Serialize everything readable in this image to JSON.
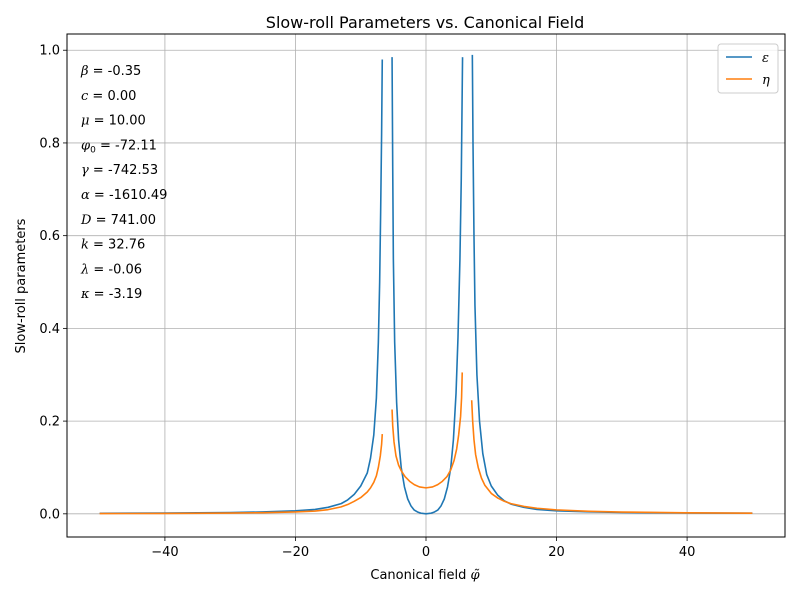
{
  "chart_data": {
    "type": "line",
    "title": "Slow-roll Parameters vs. Canonical Field",
    "xlabel": "Canonical field",
    "xlabel_symbol": "φ̃",
    "ylabel": "Slow-roll parameters",
    "xlim": [
      -55,
      55
    ],
    "ylim": [
      -0.05,
      1.035
    ],
    "xticks": [
      -40,
      -20,
      0,
      20,
      40
    ],
    "yticks": [
      0.0,
      0.2,
      0.4,
      0.6,
      0.8,
      1.0
    ],
    "xtick_labels": [
      "−40",
      "−20",
      "0",
      "20",
      "40"
    ],
    "ytick_labels": [
      "0.0",
      "0.2",
      "0.4",
      "0.6",
      "0.8",
      "1.0"
    ],
    "grid": true,
    "legend_position": "top-right",
    "series": [
      {
        "name": "ε",
        "color": "#1f77b4",
        "segments": [
          [
            [
              -50,
              0.0012
            ],
            [
              -40,
              0.0016
            ],
            [
              -30,
              0.0028
            ],
            [
              -25,
              0.004
            ],
            [
              -20,
              0.0064
            ],
            [
              -17,
              0.0095
            ],
            [
              -15,
              0.014
            ],
            [
              -13,
              0.022
            ],
            [
              -12,
              0.03
            ],
            [
              -11,
              0.042
            ],
            [
              -10,
              0.06
            ],
            [
              -9,
              0.088
            ],
            [
              -8.5,
              0.12
            ],
            [
              -8,
              0.17
            ],
            [
              -7.6,
              0.25
            ],
            [
              -7.3,
              0.37
            ],
            [
              -7.1,
              0.5
            ],
            [
              -6.95,
              0.65
            ],
            [
              -6.8,
              0.82
            ],
            [
              -6.7,
              0.98
            ]
          ],
          [
            [
              -5.2,
              0.985
            ],
            [
              -5.1,
              0.75
            ],
            [
              -5.0,
              0.55
            ],
            [
              -4.8,
              0.37
            ],
            [
              -4.5,
              0.24
            ],
            [
              -4.2,
              0.16
            ],
            [
              -3.8,
              0.1
            ],
            [
              -3.3,
              0.058
            ],
            [
              -2.8,
              0.032
            ],
            [
              -2.3,
              0.017
            ],
            [
              -1.8,
              0.008
            ],
            [
              -1.3,
              0.004
            ],
            [
              -0.8,
              0.0015
            ],
            [
              0,
              0
            ],
            [
              0.8,
              0.0015
            ],
            [
              1.3,
              0.004
            ],
            [
              1.8,
              0.008
            ],
            [
              2.3,
              0.017
            ],
            [
              2.8,
              0.032
            ],
            [
              3.3,
              0.058
            ],
            [
              3.8,
              0.1
            ],
            [
              4.2,
              0.16
            ],
            [
              4.6,
              0.26
            ],
            [
              4.9,
              0.38
            ],
            [
              5.2,
              0.55
            ],
            [
              5.4,
              0.72
            ],
            [
              5.5,
              0.85
            ],
            [
              5.6,
              0.985
            ]
          ],
          [
            [
              7.1,
              0.99
            ],
            [
              7.2,
              0.8
            ],
            [
              7.35,
              0.6
            ],
            [
              7.5,
              0.45
            ],
            [
              7.8,
              0.3
            ],
            [
              8.2,
              0.2
            ],
            [
              8.7,
              0.13
            ],
            [
              9.3,
              0.085
            ],
            [
              10,
              0.06
            ],
            [
              11,
              0.04
            ],
            [
              12,
              0.028
            ],
            [
              13,
              0.021
            ],
            [
              15,
              0.014
            ],
            [
              17,
              0.0095
            ],
            [
              20,
              0.0065
            ],
            [
              25,
              0.0042
            ],
            [
              30,
              0.003
            ],
            [
              40,
              0.0018
            ],
            [
              50,
              0.0013
            ]
          ]
        ]
      },
      {
        "name": "η",
        "color": "#ff7f0e",
        "segments": [
          [
            [
              -50,
              0.0005
            ],
            [
              -40,
              0.0009
            ],
            [
              -30,
              0.0017
            ],
            [
              -25,
              0.0025
            ],
            [
              -20,
              0.004
            ],
            [
              -17,
              0.006
            ],
            [
              -15,
              0.009
            ],
            [
              -13,
              0.015
            ],
            [
              -12,
              0.02
            ],
            [
              -11,
              0.027
            ],
            [
              -10,
              0.035
            ],
            [
              -9,
              0.047
            ],
            [
              -8.5,
              0.056
            ],
            [
              -8,
              0.068
            ],
            [
              -7.6,
              0.082
            ],
            [
              -7.3,
              0.1
            ],
            [
              -7.0,
              0.125
            ],
            [
              -6.8,
              0.15
            ],
            [
              -6.7,
              0.172
            ]
          ],
          [
            [
              -5.2,
              0.225
            ],
            [
              -5.1,
              0.19
            ],
            [
              -4.9,
              0.155
            ],
            [
              -4.6,
              0.125
            ],
            [
              -4.2,
              0.105
            ],
            [
              -3.8,
              0.093
            ],
            [
              -3.2,
              0.08
            ],
            [
              -2.5,
              0.07
            ],
            [
              -1.8,
              0.063
            ],
            [
              -1.0,
              0.058
            ],
            [
              0,
              0.056
            ],
            [
              1.0,
              0.058
            ],
            [
              1.8,
              0.063
            ],
            [
              2.5,
              0.07
            ],
            [
              3.2,
              0.08
            ],
            [
              3.8,
              0.095
            ],
            [
              4.3,
              0.115
            ],
            [
              4.7,
              0.14
            ],
            [
              5.0,
              0.17
            ],
            [
              5.3,
              0.21
            ],
            [
              5.45,
              0.25
            ],
            [
              5.55,
              0.305
            ]
          ],
          [
            [
              7.0,
              0.245
            ],
            [
              7.15,
              0.2
            ],
            [
              7.35,
              0.16
            ],
            [
              7.6,
              0.128
            ],
            [
              8.0,
              0.1
            ],
            [
              8.5,
              0.077
            ],
            [
              9.0,
              0.062
            ],
            [
              10,
              0.044
            ],
            [
              11,
              0.034
            ],
            [
              12,
              0.027
            ],
            [
              13,
              0.022
            ],
            [
              15,
              0.016
            ],
            [
              17,
              0.012
            ],
            [
              20,
              0.0085
            ],
            [
              25,
              0.0055
            ],
            [
              30,
              0.0038
            ],
            [
              40,
              0.0022
            ],
            [
              50,
              0.0014
            ]
          ]
        ]
      }
    ],
    "annotations": [
      {
        "symbol": "β",
        "sub": "",
        "value": " = -0.35"
      },
      {
        "symbol": "c",
        "sub": "",
        "value": " = 0.00"
      },
      {
        "symbol": "μ",
        "sub": "",
        "value": " = 10.00"
      },
      {
        "symbol": "φ",
        "sub": "0",
        "value": " = -72.11"
      },
      {
        "symbol": "γ",
        "sub": "",
        "value": " = -742.53"
      },
      {
        "symbol": "α",
        "sub": "",
        "value": " = -1610.49"
      },
      {
        "symbol": "D",
        "sub": "",
        "value": " = 741.00"
      },
      {
        "symbol": "k",
        "sub": "",
        "value": " = 32.76"
      },
      {
        "symbol": "λ",
        "sub": "",
        "value": " = -0.06"
      },
      {
        "symbol": "κ",
        "sub": "",
        "value": " = -3.19"
      }
    ]
  }
}
